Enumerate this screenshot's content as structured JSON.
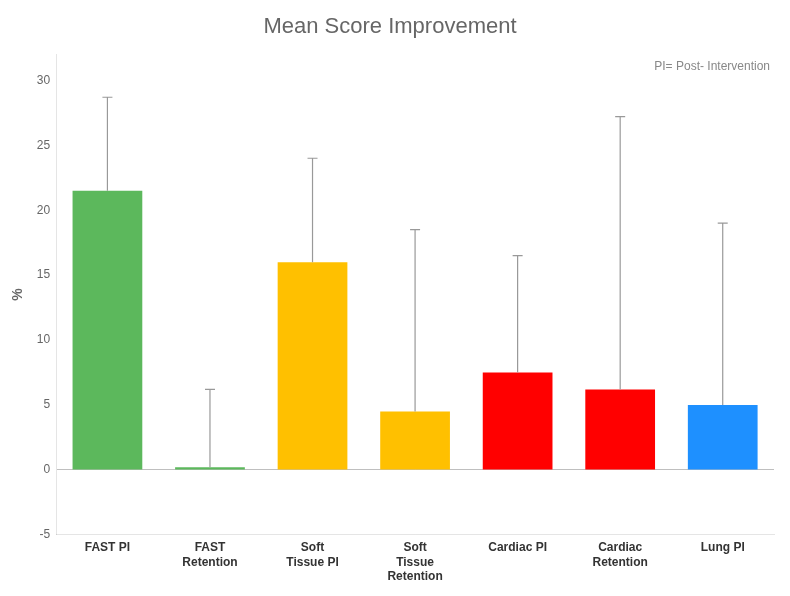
{
  "chart_data": {
    "type": "bar",
    "title": "Mean Score Improvement",
    "ylabel": "%",
    "annotation": "PI= Post- Intervention",
    "categories": [
      "FAST PI",
      "FAST\nRetention",
      "Soft\nTissue PI",
      "Soft\nTissue\nRetention",
      "Cardiac PI",
      "Cardiac\nRetention",
      "Lung PI"
    ],
    "values": [
      21.5,
      0.2,
      16.0,
      4.5,
      7.5,
      6.2,
      5.0
    ],
    "errors_upper": [
      7.2,
      6.0,
      8.0,
      14.0,
      9.0,
      21.0,
      14.0
    ],
    "colors": [
      "#5cb85c",
      "#5cb85c",
      "#ffc000",
      "#ffc000",
      "#ff0000",
      "#ff0000",
      "#1e90ff"
    ],
    "ylim": [
      -5,
      32
    ],
    "yticks": [
      -5,
      0,
      5,
      10,
      15,
      20,
      25,
      30
    ],
    "grid": false
  }
}
